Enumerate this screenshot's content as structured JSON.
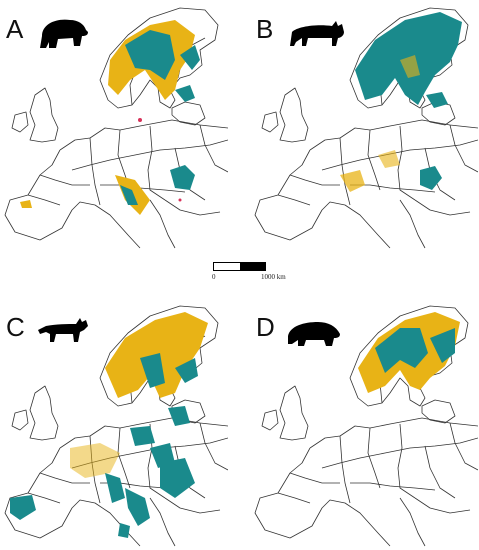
{
  "panels": [
    {
      "letter": "A",
      "species_icon": "bear-silhouette-icon"
    },
    {
      "letter": "B",
      "species_icon": "lynx-silhouette-icon"
    },
    {
      "letter": "C",
      "species_icon": "wolf-silhouette-icon"
    },
    {
      "letter": "D",
      "species_icon": "wolverine-silhouette-icon"
    }
  ],
  "scalebar": {
    "start_label": "0",
    "end_label": "1000 km"
  },
  "colors": {
    "teal": "#1a8a8c",
    "yellow": "#e8b316",
    "border": "#333333",
    "red_spots": "#d8325a"
  }
}
